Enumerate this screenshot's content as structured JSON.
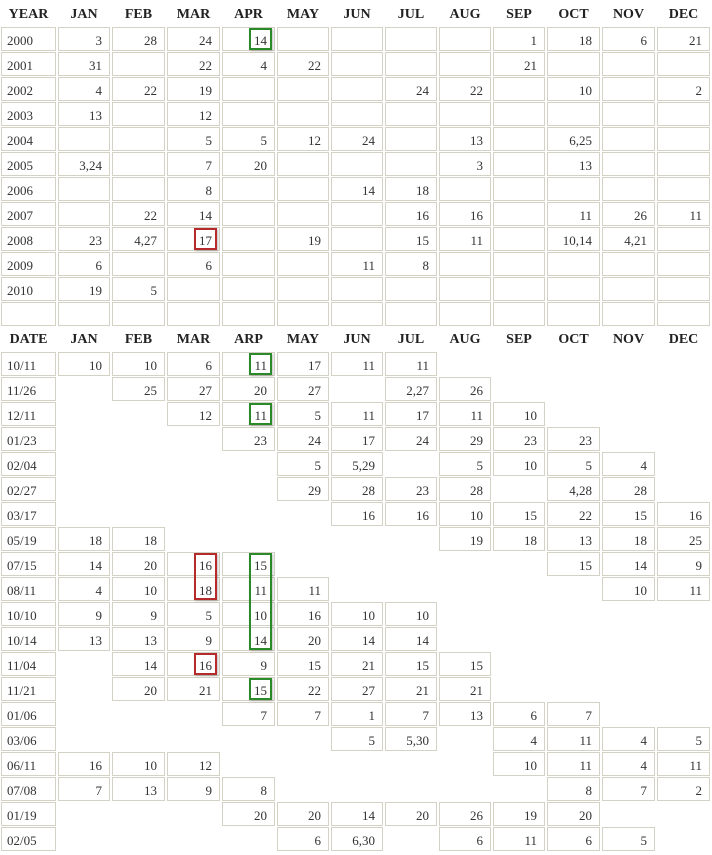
{
  "tables": [
    {
      "header": [
        "YEAR",
        "JAN",
        "FEB",
        "MAR",
        "APR",
        "MAY",
        "JUN",
        "JUL",
        "AUG",
        "SEP",
        "OCT",
        "NOV",
        "DEC"
      ],
      "rows": [
        {
          "label": "2000",
          "cells": [
            "3",
            "28",
            "24",
            "14",
            null,
            null,
            null,
            null,
            "1",
            "18",
            "6",
            "21"
          ]
        },
        {
          "label": "2001",
          "cells": [
            "31",
            null,
            "22",
            "4",
            "22",
            null,
            null,
            null,
            "21",
            null,
            null,
            null
          ]
        },
        {
          "label": "2002",
          "cells": [
            "4",
            "22",
            "19",
            null,
            null,
            null,
            "24",
            "22",
            null,
            "10",
            null,
            "2"
          ]
        },
        {
          "label": "2003",
          "cells": [
            "13",
            null,
            "12",
            null,
            null,
            null,
            null,
            null,
            null,
            null,
            null,
            null
          ]
        },
        {
          "label": "2004",
          "cells": [
            null,
            null,
            "5",
            "5",
            "12",
            "24",
            null,
            "13",
            null,
            "6,25",
            null,
            null
          ]
        },
        {
          "label": "2005",
          "cells": [
            "3,24",
            null,
            "7",
            "20",
            null,
            null,
            null,
            "3",
            null,
            "13",
            null,
            null
          ]
        },
        {
          "label": "2006",
          "cells": [
            null,
            null,
            "8",
            null,
            null,
            "14",
            "18",
            null,
            null,
            null,
            null,
            null
          ]
        },
        {
          "label": "2007",
          "cells": [
            null,
            "22",
            "14",
            null,
            null,
            null,
            "16",
            "16",
            null,
            "11",
            "26",
            "11"
          ]
        },
        {
          "label": "2008",
          "cells": [
            "23",
            "4,27",
            "17",
            null,
            "19",
            null,
            "15",
            "11",
            null,
            "10,14",
            "4,21",
            null
          ]
        },
        {
          "label": "2009",
          "cells": [
            "6",
            null,
            "6",
            null,
            null,
            "11",
            "8",
            null,
            null,
            null,
            null,
            null
          ]
        },
        {
          "label": "2010",
          "cells": [
            "19",
            "5",
            null,
            null,
            null,
            null,
            null,
            null,
            null,
            null,
            null,
            null
          ]
        },
        {
          "label": null,
          "cells": [
            null,
            null,
            null,
            null,
            null,
            null,
            null,
            null,
            null,
            null,
            null,
            null
          ]
        }
      ]
    },
    {
      "header": [
        "DATE",
        "JAN",
        "FEB",
        "MAR",
        "ARP",
        "MAY",
        "JUN",
        "JUL",
        "AUG",
        "SEP",
        "OCT",
        "NOV",
        "DEC"
      ],
      "rows": [
        {
          "label": "10/11",
          "cells": [
            "10",
            "10",
            "6",
            "11",
            "17",
            "11",
            "11",
            null,
            null,
            null,
            null,
            null
          ]
        },
        {
          "label": "11/26",
          "cells": [
            null,
            "25",
            "27",
            "20",
            "27",
            null,
            "2,27",
            "26",
            null,
            null,
            null,
            null
          ]
        },
        {
          "label": "12/11",
          "cells": [
            null,
            null,
            "12",
            "11",
            "5",
            "11",
            "17",
            "11",
            "10",
            null,
            null,
            null
          ]
        },
        {
          "label": "01/23",
          "cells": [
            null,
            null,
            null,
            "23",
            "24",
            "17",
            "24",
            "29",
            "23",
            "23",
            null,
            null
          ]
        },
        {
          "label": "02/04",
          "cells": [
            null,
            null,
            null,
            null,
            "5",
            "5,29",
            null,
            "5",
            "10",
            "5",
            "4",
            null
          ]
        },
        {
          "label": "02/27",
          "cells": [
            null,
            null,
            null,
            null,
            "29",
            "28",
            "23",
            "28",
            null,
            "4,28",
            "28",
            null
          ]
        },
        {
          "label": "03/17",
          "cells": [
            null,
            null,
            null,
            null,
            null,
            "16",
            "16",
            "10",
            "15",
            "22",
            "15",
            "16"
          ]
        },
        {
          "label": "05/19",
          "cells": [
            "18",
            "18",
            null,
            null,
            null,
            null,
            null,
            "19",
            "18",
            "13",
            "18",
            "25"
          ]
        },
        {
          "label": "07/15",
          "cells": [
            "14",
            "20",
            "16",
            "15",
            null,
            null,
            null,
            null,
            null,
            "15",
            "14",
            "9"
          ]
        },
        {
          "label": "08/11",
          "cells": [
            "4",
            "10",
            "18",
            "11",
            "11",
            null,
            null,
            null,
            null,
            null,
            "10",
            "11"
          ]
        },
        {
          "label": "10/10",
          "cells": [
            "9",
            "9",
            "5",
            "10",
            "16",
            "10",
            "10",
            null,
            null,
            null,
            null,
            null
          ]
        },
        {
          "label": "10/14",
          "cells": [
            "13",
            "13",
            "9",
            "14",
            "20",
            "14",
            "14",
            null,
            null,
            null,
            null,
            null
          ]
        },
        {
          "label": "11/04",
          "cells": [
            null,
            "14",
            "16",
            "9",
            "15",
            "21",
            "15",
            "15",
            null,
            null,
            null,
            null
          ]
        },
        {
          "label": "11/21",
          "cells": [
            null,
            "20",
            "21",
            "15",
            "22",
            "27",
            "21",
            "21",
            null,
            null,
            null,
            null
          ]
        },
        {
          "label": "01/06",
          "cells": [
            null,
            null,
            null,
            "7",
            "7",
            "1",
            "7",
            "13",
            "6",
            "7",
            null,
            null
          ]
        },
        {
          "label": "03/06",
          "cells": [
            null,
            null,
            null,
            null,
            null,
            "5",
            "5,30",
            null,
            "4",
            "11",
            "4",
            "5"
          ]
        },
        {
          "label": "06/11",
          "cells": [
            "16",
            "10",
            "12",
            null,
            null,
            null,
            null,
            null,
            "10",
            "11",
            "4",
            "11"
          ]
        },
        {
          "label": "07/08",
          "cells": [
            "7",
            "13",
            "9",
            "8",
            null,
            null,
            null,
            null,
            null,
            "8",
            "7",
            "2"
          ]
        },
        {
          "label": "01/19",
          "cells": [
            null,
            null,
            null,
            "20",
            "20",
            "14",
            "20",
            "26",
            "19",
            "20",
            null,
            null
          ]
        },
        {
          "label": "02/05",
          "cells": [
            null,
            null,
            null,
            null,
            "6",
            "6,30",
            null,
            "6",
            "11",
            "6",
            "5",
            null
          ]
        }
      ]
    }
  ]
}
